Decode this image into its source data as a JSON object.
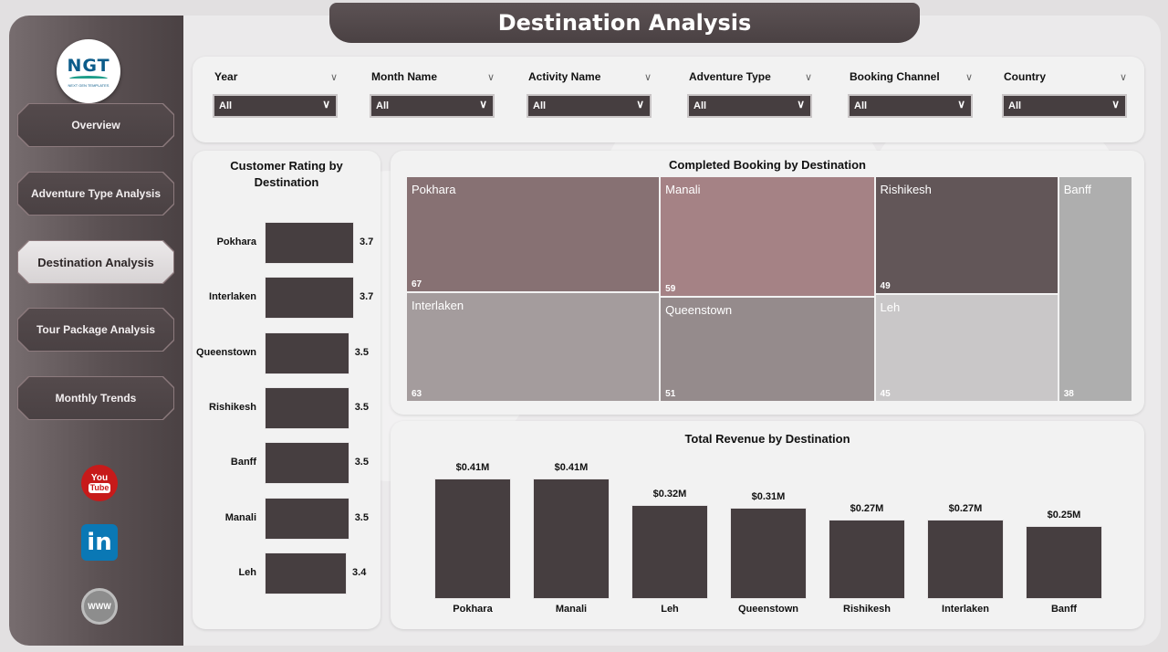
{
  "header": {
    "title": "Destination Analysis"
  },
  "logo": {
    "text": "NGT",
    "subtext": "NEXT GEN TEMPLATES"
  },
  "nav": [
    {
      "label": "Overview",
      "active": false
    },
    {
      "label": "Adventure Type Analysis",
      "active": false
    },
    {
      "label": "Destination Analysis",
      "active": true
    },
    {
      "label": "Tour Package Analysis",
      "active": false
    },
    {
      "label": "Monthly Trends",
      "active": false
    }
  ],
  "social": {
    "youtube": "You",
    "youtube_tube": "Tube",
    "linkedin": "in",
    "www": "WWW"
  },
  "filters": [
    {
      "label": "Year",
      "value": "All"
    },
    {
      "label": "Month Name",
      "value": "All"
    },
    {
      "label": "Activity Name",
      "value": "All"
    },
    {
      "label": "Adventure Type",
      "value": "All"
    },
    {
      "label": "Booking Channel",
      "value": "All"
    },
    {
      "label": "Country",
      "value": "All"
    }
  ],
  "icons": {
    "dropdown": "chevron-down-icon"
  },
  "rating_chart": {
    "title": "Customer Rating by Destination",
    "type": "bar",
    "categories": [
      "Pokhara",
      "Interlaken",
      "Queenstown",
      "Rishikesh",
      "Banff",
      "Manali",
      "Leh"
    ],
    "values": [
      3.7,
      3.7,
      3.5,
      3.5,
      3.5,
      3.5,
      3.4
    ],
    "labels": [
      "3.7",
      "3.7",
      "3.5",
      "3.5",
      "3.5",
      "3.5",
      "3.4"
    ]
  },
  "treemap_chart": {
    "title": "Completed Booking by Destination",
    "type": "treemap",
    "items": [
      {
        "name": "Pokhara",
        "value": 67,
        "color": "#877173"
      },
      {
        "name": "Interlaken",
        "value": 63,
        "color": "#a49c9d"
      },
      {
        "name": "Manali",
        "value": 59,
        "color": "#a58285"
      },
      {
        "name": "Queenstown",
        "value": 51,
        "color": "#958b8c"
      },
      {
        "name": "Rishikesh",
        "value": 49,
        "color": "#625658"
      },
      {
        "name": "Leh",
        "value": 45,
        "color": "#c9c7c8"
      },
      {
        "name": "Banff",
        "value": 38,
        "color": "#aeaeae"
      }
    ]
  },
  "chart_data": {
    "type": "bar",
    "title": "Total Revenue by Destination",
    "categories": [
      "Pokhara",
      "Manali",
      "Leh",
      "Queenstown",
      "Rishikesh",
      "Interlaken",
      "Banff"
    ],
    "values": [
      0.41,
      0.41,
      0.32,
      0.31,
      0.27,
      0.27,
      0.25
    ],
    "labels": [
      "$0.41M",
      "$0.41M",
      "$0.32M",
      "$0.31M",
      "$0.27M",
      "$0.27M",
      "$0.25M"
    ],
    "ylim": [
      0,
      0.41
    ]
  }
}
